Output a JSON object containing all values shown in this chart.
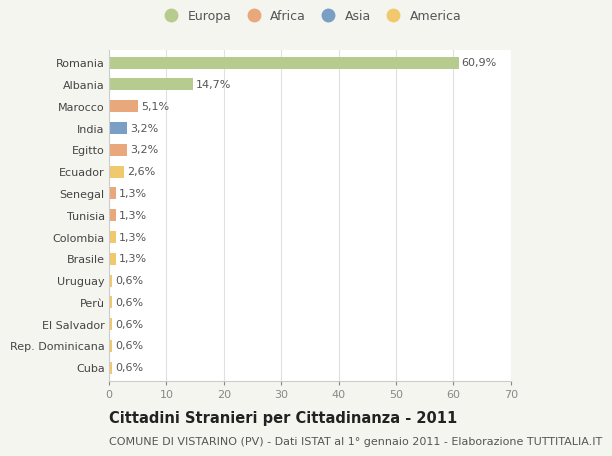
{
  "countries": [
    "Romania",
    "Albania",
    "Marocco",
    "India",
    "Egitto",
    "Ecuador",
    "Senegal",
    "Tunisia",
    "Colombia",
    "Brasile",
    "Uruguay",
    "Perù",
    "El Salvador",
    "Rep. Dominicana",
    "Cuba"
  ],
  "values": [
    60.9,
    14.7,
    5.1,
    3.2,
    3.2,
    2.6,
    1.3,
    1.3,
    1.3,
    1.3,
    0.6,
    0.6,
    0.6,
    0.6,
    0.6
  ],
  "labels": [
    "60,9%",
    "14,7%",
    "5,1%",
    "3,2%",
    "3,2%",
    "2,6%",
    "1,3%",
    "1,3%",
    "1,3%",
    "1,3%",
    "0,6%",
    "0,6%",
    "0,6%",
    "0,6%",
    "0,6%"
  ],
  "continents": [
    "Europa",
    "Europa",
    "Africa",
    "Asia",
    "Africa",
    "America",
    "Africa",
    "Africa",
    "America",
    "America",
    "America",
    "America",
    "America",
    "America",
    "America"
  ],
  "colors": {
    "Europa": "#b5cc8e",
    "Africa": "#e8a87c",
    "Asia": "#7b9ec4",
    "America": "#f0c96e"
  },
  "legend_order": [
    "Europa",
    "Africa",
    "Asia",
    "America"
  ],
  "xlim": [
    0,
    70
  ],
  "xticks": [
    0,
    10,
    20,
    30,
    40,
    50,
    60,
    70
  ],
  "background_color": "#f5f5f0",
  "bar_background": "#ffffff",
  "grid_color": "#e0e0e0",
  "title": "Cittadini Stranieri per Cittadinanza - 2011",
  "subtitle": "COMUNE DI VISTARINO (PV) - Dati ISTAT al 1° gennaio 2011 - Elaborazione TUTTITALIA.IT",
  "title_fontsize": 10.5,
  "subtitle_fontsize": 8,
  "label_fontsize": 8,
  "tick_fontsize": 8,
  "legend_fontsize": 9
}
